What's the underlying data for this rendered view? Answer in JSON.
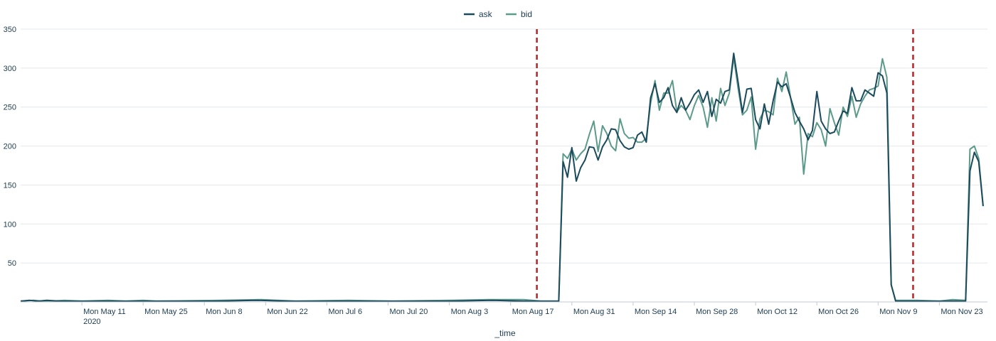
{
  "chart_data": {
    "type": "line",
    "title": "",
    "xlabel": "_time",
    "ylabel": "",
    "ylim": [
      0,
      350
    ],
    "yticks": [
      50,
      100,
      150,
      200,
      250,
      300,
      350
    ],
    "xlim": [
      "2020-04-27",
      "2020-12-04"
    ],
    "x_tick_labels": [
      {
        "date": "2020-05-11",
        "label": "Mon May 11",
        "sublabel": "2020"
      },
      {
        "date": "2020-05-25",
        "label": "Mon May 25"
      },
      {
        "date": "2020-06-08",
        "label": "Mon Jun 8"
      },
      {
        "date": "2020-06-22",
        "label": "Mon Jun 22"
      },
      {
        "date": "2020-07-06",
        "label": "Mon Jul 6"
      },
      {
        "date": "2020-07-20",
        "label": "Mon Jul 20"
      },
      {
        "date": "2020-08-03",
        "label": "Mon Aug 3"
      },
      {
        "date": "2020-08-17",
        "label": "Mon Aug 17"
      },
      {
        "date": "2020-08-31",
        "label": "Mon Aug 31"
      },
      {
        "date": "2020-09-14",
        "label": "Mon Sep 14"
      },
      {
        "date": "2020-09-28",
        "label": "Mon Sep 28"
      },
      {
        "date": "2020-10-12",
        "label": "Mon Oct 12"
      },
      {
        "date": "2020-10-26",
        "label": "Mon Oct 26"
      },
      {
        "date": "2020-11-09",
        "label": "Mon Nov 9"
      },
      {
        "date": "2020-11-23",
        "label": "Mon Nov 23"
      }
    ],
    "legend": {
      "position": "top-center"
    },
    "grid": true,
    "annotations": [
      {
        "type": "vertical-dashed-line",
        "date": "2020-08-23",
        "color": "#b3262b"
      },
      {
        "type": "vertical-dashed-line",
        "date": "2020-11-17",
        "color": "#b3262b"
      }
    ],
    "series": [
      {
        "name": "ask",
        "color": "#1b4a5c",
        "points": [
          [
            "2020-04-27",
            1
          ],
          [
            "2020-04-29",
            2
          ],
          [
            "2020-05-01",
            1
          ],
          [
            "2020-05-03",
            2
          ],
          [
            "2020-05-06",
            1
          ],
          [
            "2020-05-10",
            1
          ],
          [
            "2020-05-16",
            1
          ],
          [
            "2020-05-20",
            1
          ],
          [
            "2020-05-24",
            1
          ],
          [
            "2020-05-27",
            1
          ],
          [
            "2020-06-10",
            1
          ],
          [
            "2020-06-20",
            2
          ],
          [
            "2020-06-28",
            1
          ],
          [
            "2020-07-10",
            1
          ],
          [
            "2020-07-20",
            1
          ],
          [
            "2020-08-02",
            1
          ],
          [
            "2020-08-13",
            2
          ],
          [
            "2020-08-20",
            1
          ],
          [
            "2020-08-24",
            1
          ],
          [
            "2020-08-28",
            1
          ],
          [
            "2020-08-29",
            180
          ],
          [
            "2020-08-30",
            160
          ],
          [
            "2020-08-31",
            198
          ],
          [
            "2020-09-01",
            155
          ],
          [
            "2020-09-02",
            172
          ],
          [
            "2020-09-03",
            182
          ],
          [
            "2020-09-04",
            199
          ],
          [
            "2020-09-05",
            198
          ],
          [
            "2020-09-06",
            182
          ],
          [
            "2020-09-07",
            199
          ],
          [
            "2020-09-08",
            208
          ],
          [
            "2020-09-09",
            222
          ],
          [
            "2020-09-10",
            221
          ],
          [
            "2020-09-11",
            207
          ],
          [
            "2020-09-12",
            199
          ],
          [
            "2020-09-13",
            196
          ],
          [
            "2020-09-14",
            198
          ],
          [
            "2020-09-15",
            214
          ],
          [
            "2020-09-16",
            218
          ],
          [
            "2020-09-17",
            205
          ],
          [
            "2020-09-18",
            262
          ],
          [
            "2020-09-19",
            280
          ],
          [
            "2020-09-20",
            256
          ],
          [
            "2020-09-21",
            262
          ],
          [
            "2020-09-22",
            275
          ],
          [
            "2020-09-23",
            252
          ],
          [
            "2020-09-24",
            243
          ],
          [
            "2020-09-25",
            262
          ],
          [
            "2020-09-26",
            246
          ],
          [
            "2020-09-27",
            255
          ],
          [
            "2020-09-28",
            266
          ],
          [
            "2020-09-29",
            272
          ],
          [
            "2020-09-30",
            256
          ],
          [
            "2020-10-01",
            270
          ],
          [
            "2020-10-02",
            238
          ],
          [
            "2020-10-03",
            260
          ],
          [
            "2020-10-04",
            255
          ],
          [
            "2020-10-05",
            270
          ],
          [
            "2020-10-06",
            272
          ],
          [
            "2020-10-07",
            319
          ],
          [
            "2020-10-08",
            282
          ],
          [
            "2020-10-09",
            243
          ],
          [
            "2020-10-10",
            273
          ],
          [
            "2020-10-11",
            274
          ],
          [
            "2020-10-12",
            234
          ],
          [
            "2020-10-13",
            222
          ],
          [
            "2020-10-14",
            254
          ],
          [
            "2020-10-15",
            228
          ],
          [
            "2020-10-16",
            258
          ],
          [
            "2020-10-17",
            282
          ],
          [
            "2020-10-18",
            276
          ],
          [
            "2020-10-19",
            280
          ],
          [
            "2020-10-20",
            262
          ],
          [
            "2020-10-21",
            243
          ],
          [
            "2020-10-22",
            232
          ],
          [
            "2020-10-23",
            222
          ],
          [
            "2020-10-24",
            208
          ],
          [
            "2020-10-25",
            220
          ],
          [
            "2020-10-26",
            270
          ],
          [
            "2020-10-27",
            232
          ],
          [
            "2020-10-28",
            222
          ],
          [
            "2020-10-29",
            216
          ],
          [
            "2020-10-30",
            218
          ],
          [
            "2020-10-31",
            232
          ],
          [
            "2020-11-01",
            245
          ],
          [
            "2020-11-02",
            242
          ],
          [
            "2020-11-03",
            275
          ],
          [
            "2020-11-04",
            258
          ],
          [
            "2020-11-05",
            258
          ],
          [
            "2020-11-06",
            272
          ],
          [
            "2020-11-07",
            268
          ],
          [
            "2020-11-08",
            264
          ],
          [
            "2020-11-09",
            294
          ],
          [
            "2020-11-10",
            290
          ],
          [
            "2020-11-11",
            268
          ],
          [
            "2020-11-12",
            22
          ],
          [
            "2020-11-13",
            1
          ],
          [
            "2020-11-18",
            1
          ],
          [
            "2020-11-23",
            1
          ],
          [
            "2020-11-26",
            1
          ],
          [
            "2020-11-29",
            1
          ],
          [
            "2020-11-30",
            168
          ],
          [
            "2020-12-01",
            192
          ],
          [
            "2020-12-02",
            180
          ],
          [
            "2020-12-03",
            123
          ]
        ]
      },
      {
        "name": "bid",
        "color": "#5c9a8a",
        "points": [
          [
            "2020-04-27",
            1
          ],
          [
            "2020-04-30",
            2
          ],
          [
            "2020-05-02",
            1
          ],
          [
            "2020-05-04",
            1
          ],
          [
            "2020-05-07",
            2
          ],
          [
            "2020-05-11",
            1
          ],
          [
            "2020-05-17",
            2
          ],
          [
            "2020-05-21",
            1
          ],
          [
            "2020-05-25",
            2
          ],
          [
            "2020-05-28",
            1
          ],
          [
            "2020-06-12",
            2
          ],
          [
            "2020-06-21",
            3
          ],
          [
            "2020-06-29",
            1
          ],
          [
            "2020-07-11",
            2
          ],
          [
            "2020-07-21",
            1
          ],
          [
            "2020-08-03",
            2
          ],
          [
            "2020-08-12",
            3
          ],
          [
            "2020-08-20",
            3
          ],
          [
            "2020-08-24",
            1
          ],
          [
            "2020-08-28",
            1
          ],
          [
            "2020-08-29",
            190
          ],
          [
            "2020-08-30",
            184
          ],
          [
            "2020-08-31",
            196
          ],
          [
            "2020-09-01",
            182
          ],
          [
            "2020-09-02",
            190
          ],
          [
            "2020-09-03",
            196
          ],
          [
            "2020-09-04",
            215
          ],
          [
            "2020-09-05",
            232
          ],
          [
            "2020-09-06",
            193
          ],
          [
            "2020-09-07",
            226
          ],
          [
            "2020-09-08",
            216
          ],
          [
            "2020-09-09",
            200
          ],
          [
            "2020-09-10",
            194
          ],
          [
            "2020-09-11",
            235
          ],
          [
            "2020-09-12",
            216
          ],
          [
            "2020-09-13",
            210
          ],
          [
            "2020-09-14",
            211
          ],
          [
            "2020-09-15",
            205
          ],
          [
            "2020-09-16",
            205
          ],
          [
            "2020-09-17",
            210
          ],
          [
            "2020-09-18",
            255
          ],
          [
            "2020-09-19",
            284
          ],
          [
            "2020-09-20",
            246
          ],
          [
            "2020-09-21",
            268
          ],
          [
            "2020-09-22",
            268
          ],
          [
            "2020-09-23",
            284
          ],
          [
            "2020-09-24",
            244
          ],
          [
            "2020-09-25",
            252
          ],
          [
            "2020-09-26",
            246
          ],
          [
            "2020-09-27",
            234
          ],
          [
            "2020-09-28",
            252
          ],
          [
            "2020-09-29",
            265
          ],
          [
            "2020-09-30",
            250
          ],
          [
            "2020-10-01",
            224
          ],
          [
            "2020-10-02",
            262
          ],
          [
            "2020-10-03",
            232
          ],
          [
            "2020-10-04",
            274
          ],
          [
            "2020-10-05",
            252
          ],
          [
            "2020-10-06",
            268
          ],
          [
            "2020-10-07",
            314
          ],
          [
            "2020-10-08",
            274
          ],
          [
            "2020-10-09",
            240
          ],
          [
            "2020-10-10",
            246
          ],
          [
            "2020-10-11",
            263
          ],
          [
            "2020-10-12",
            196
          ],
          [
            "2020-10-13",
            235
          ],
          [
            "2020-10-14",
            246
          ],
          [
            "2020-10-15",
            244
          ],
          [
            "2020-10-16",
            240
          ],
          [
            "2020-10-17",
            287
          ],
          [
            "2020-10-18",
            270
          ],
          [
            "2020-10-19",
            295
          ],
          [
            "2020-10-20",
            262
          ],
          [
            "2020-10-21",
            228
          ],
          [
            "2020-10-22",
            237
          ],
          [
            "2020-10-23",
            164
          ],
          [
            "2020-10-24",
            216
          ],
          [
            "2020-10-25",
            212
          ],
          [
            "2020-10-26",
            230
          ],
          [
            "2020-10-27",
            221
          ],
          [
            "2020-10-28",
            200
          ],
          [
            "2020-10-29",
            248
          ],
          [
            "2020-10-30",
            230
          ],
          [
            "2020-10-31",
            214
          ],
          [
            "2020-11-01",
            250
          ],
          [
            "2020-11-02",
            238
          ],
          [
            "2020-11-03",
            264
          ],
          [
            "2020-11-04",
            237
          ],
          [
            "2020-11-05",
            254
          ],
          [
            "2020-11-06",
            264
          ],
          [
            "2020-11-07",
            272
          ],
          [
            "2020-11-08",
            274
          ],
          [
            "2020-11-09",
            277
          ],
          [
            "2020-11-10",
            312
          ],
          [
            "2020-11-11",
            288
          ],
          [
            "2020-11-12",
            22
          ],
          [
            "2020-11-13",
            2
          ],
          [
            "2020-11-18",
            2
          ],
          [
            "2020-11-23",
            1
          ],
          [
            "2020-11-26",
            3
          ],
          [
            "2020-11-29",
            2
          ],
          [
            "2020-11-30",
            196
          ],
          [
            "2020-12-01",
            200
          ],
          [
            "2020-12-02",
            184
          ],
          [
            "2020-12-03",
            123
          ]
        ]
      }
    ]
  }
}
